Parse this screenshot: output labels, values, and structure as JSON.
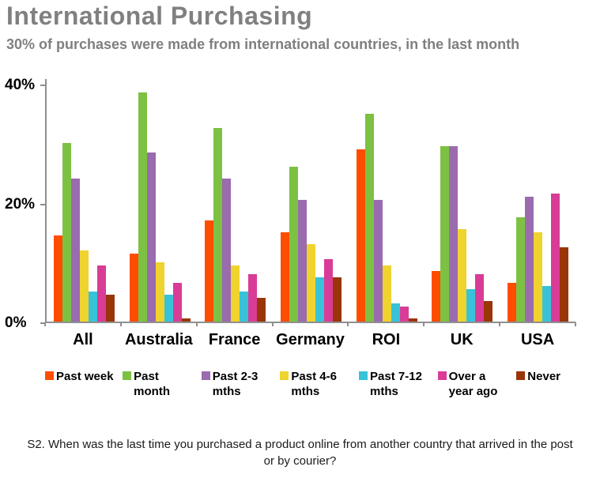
{
  "header": {
    "title": "International Purchasing",
    "subtitle": "30% of purchases were made from international countries, in the last month"
  },
  "colors": {
    "title_gray": "#808080",
    "axis_gray": "#8f8f8f",
    "label_black": "#000000"
  },
  "chart_data": {
    "type": "bar",
    "title": "International Purchasing",
    "subtitle": "30% of purchases were made from international countries, in the last month",
    "categories": [
      "All",
      "Australia",
      "France",
      "Germany",
      "ROI",
      "UK",
      "USA"
    ],
    "series": [
      {
        "name": "Past week",
        "color": "#FF4D00",
        "values": [
          14.5,
          11.5,
          17.0,
          15.0,
          29.0,
          8.5,
          6.5
        ]
      },
      {
        "name": "Past month",
        "color": "#7DC142",
        "values": [
          30.0,
          38.5,
          32.5,
          26.0,
          35.0,
          29.5,
          17.5
        ]
      },
      {
        "name": "Past 2-3 mths",
        "color": "#9A6BAE",
        "values": [
          24.0,
          28.5,
          24.0,
          20.5,
          20.5,
          29.5,
          21.0
        ]
      },
      {
        "name": "Past 4-6 mths",
        "color": "#EFD32E",
        "values": [
          12.0,
          10.0,
          9.5,
          13.0,
          9.5,
          15.5,
          15.0
        ]
      },
      {
        "name": "Past 7-12 mths",
        "color": "#38C2D8",
        "values": [
          5.0,
          4.5,
          5.0,
          7.5,
          3.0,
          5.5,
          6.0
        ]
      },
      {
        "name": "Over a year ago",
        "color": "#D93C96",
        "values": [
          9.5,
          6.5,
          8.0,
          10.5,
          2.5,
          8.0,
          21.5
        ]
      },
      {
        "name": "Never",
        "color": "#9A3507",
        "values": [
          4.5,
          0.5,
          4.0,
          7.5,
          0.5,
          3.5,
          12.5
        ]
      }
    ],
    "xlabel": "",
    "ylabel": "",
    "ylim": [
      0,
      40
    ],
    "yticks": [
      {
        "value": 0,
        "label": "0%"
      },
      {
        "value": 20,
        "label": "20%"
      },
      {
        "value": 40,
        "label": "40%"
      }
    ],
    "grid": false,
    "legend_position": "bottom"
  },
  "footer": {
    "question": "S2. When was the last time you purchased a product online from another country that arrived in the post or by courier?"
  }
}
